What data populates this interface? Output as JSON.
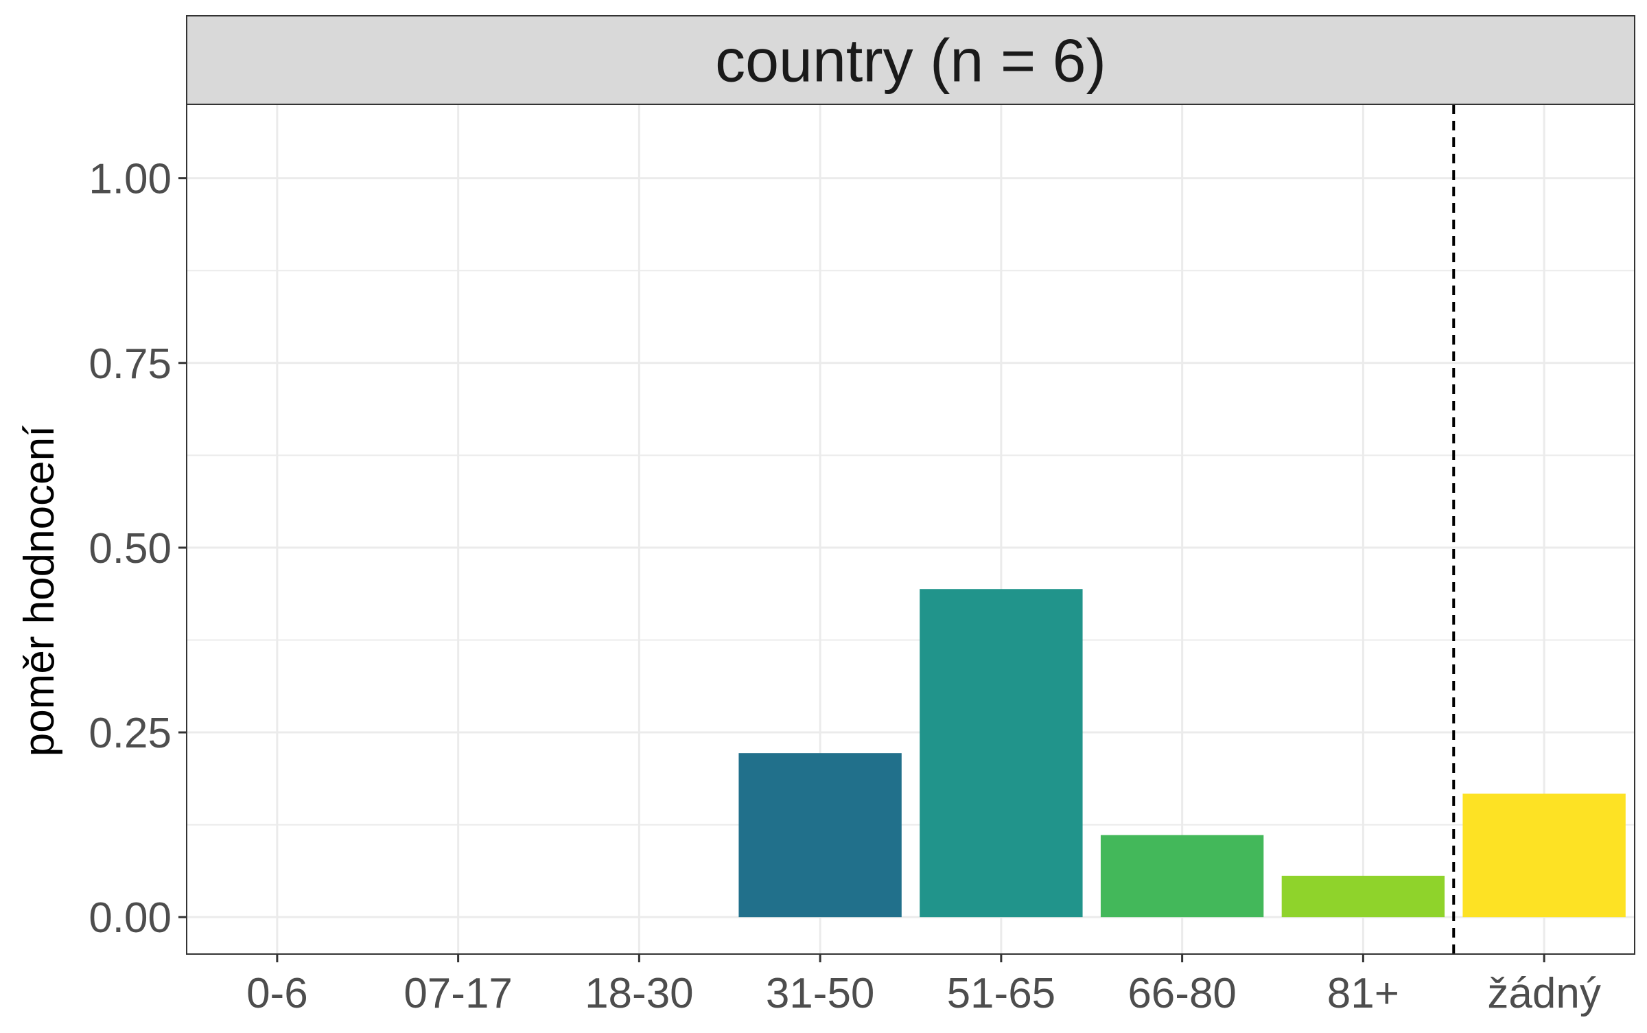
{
  "chart_data": {
    "type": "bar",
    "facet_label": "country (n = 6)",
    "xlabel": "",
    "ylabel": "poměr hodnocení",
    "categories": [
      "0-6",
      "07-17",
      "18-30",
      "31-50",
      "51-65",
      "66-80",
      "81+",
      "žádný"
    ],
    "values": [
      0,
      0,
      0,
      0.222,
      0.444,
      0.111,
      0.056,
      0.167
    ],
    "colors": [
      "#440154",
      "#46327e",
      "#365c8d",
      "#21708b",
      "#21948b",
      "#43b85a",
      "#8fd32b",
      "#fde224"
    ],
    "ylim": [
      -0.05,
      1.1
    ],
    "yticks": [
      0,
      0.25,
      0.5,
      0.75,
      1.0
    ],
    "ytick_labels": [
      "0.00",
      "0.25",
      "0.50",
      "0.75",
      "1.00"
    ],
    "vline_after_category": "81+",
    "vline_style": "dashed",
    "grid": true
  }
}
